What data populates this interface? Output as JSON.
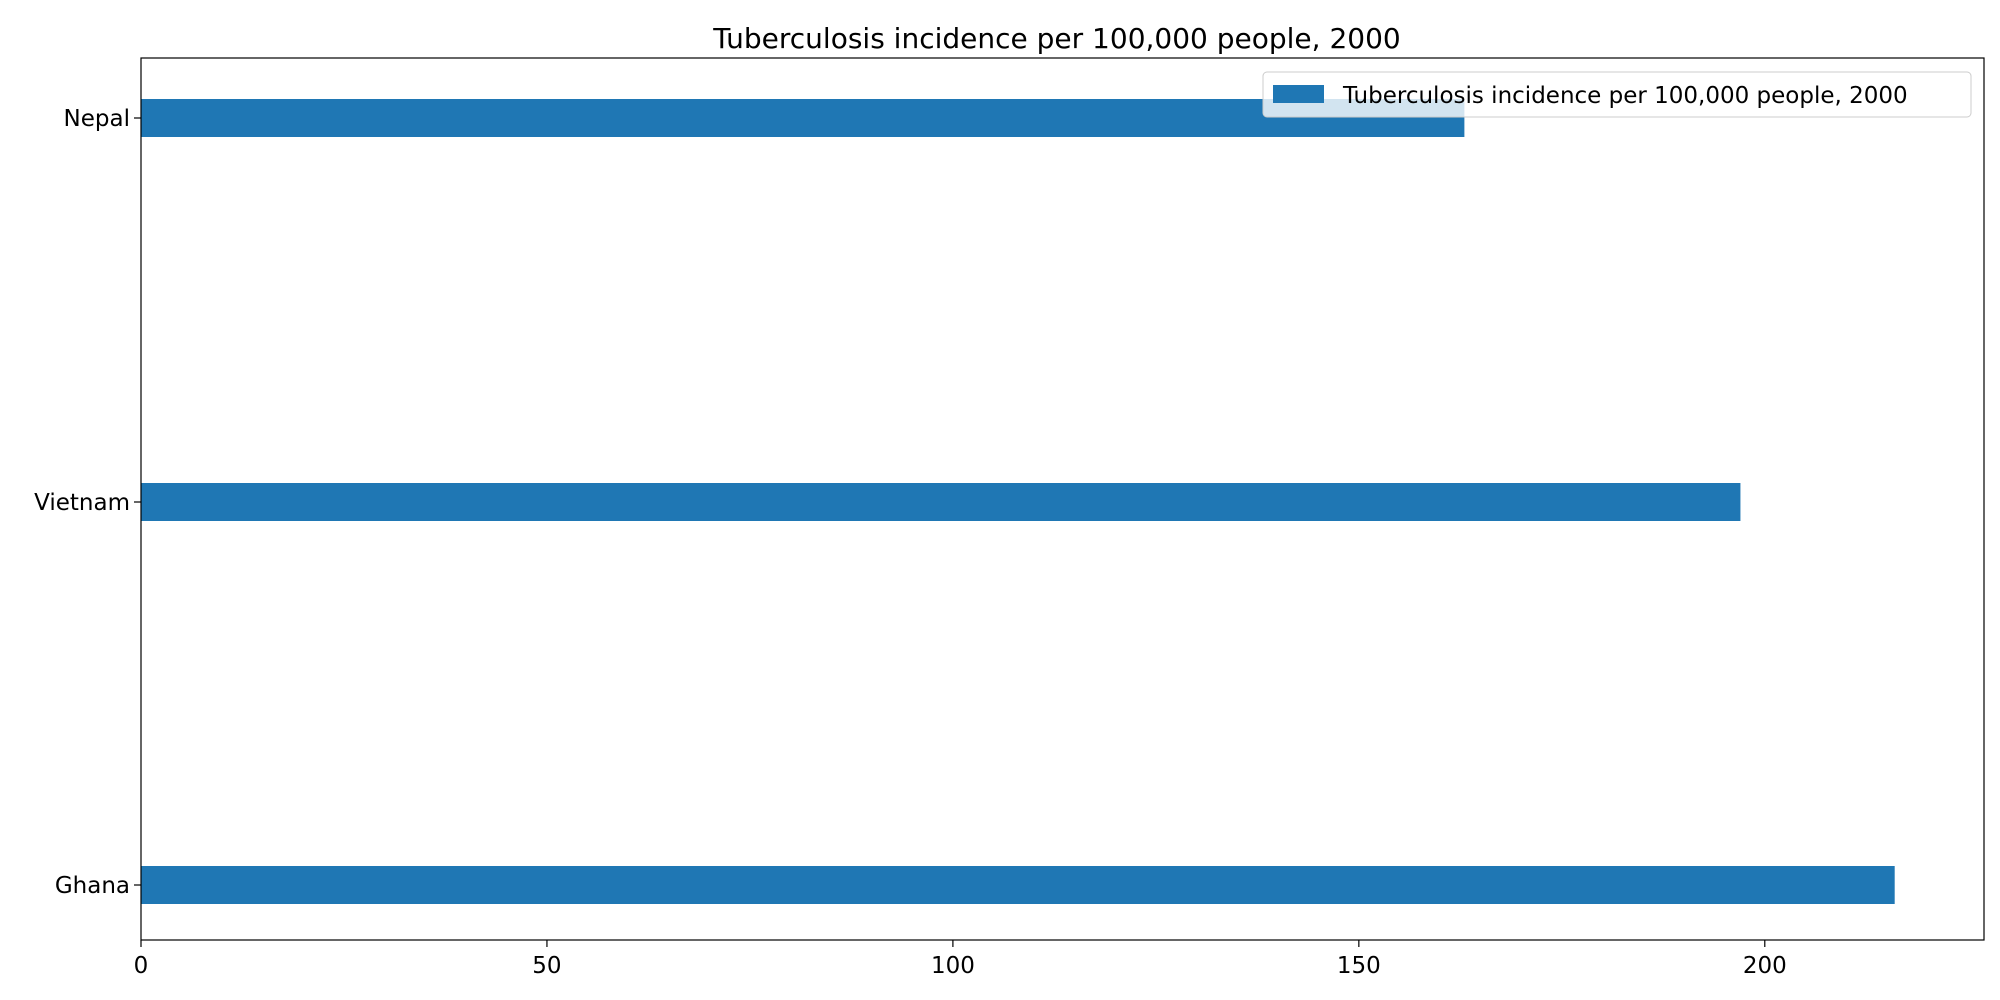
{
  "chart_data": {
    "type": "bar",
    "orientation": "horizontal",
    "title": "Tuberculosis incidence per 100,000 people, 2000",
    "xlabel": "",
    "ylabel": "",
    "categories": [
      "Ghana",
      "Vietnam",
      "Nepal"
    ],
    "series": [
      {
        "name": "Tuberculosis incidence per 100,000 people, 2000",
        "values": [
          216,
          197,
          163
        ],
        "color": "#1f77b4"
      }
    ],
    "xlim": [
      0,
      227
    ],
    "xticks": [
      0,
      50,
      100,
      150,
      200
    ],
    "xtick_labels": [
      "0",
      "50",
      "100",
      "150",
      "200"
    ],
    "grid": false,
    "legend_position": "top-right"
  }
}
